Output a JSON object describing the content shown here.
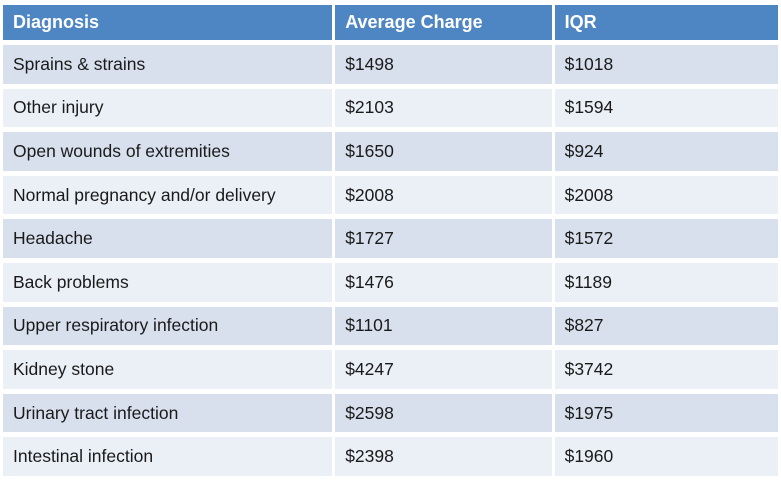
{
  "colors": {
    "header_bg": "#4E86C4",
    "header_text": "#FFFFFF",
    "band_dark": "#D8E0ED",
    "band_light": "#EBEFF6",
    "gridline": "#FFFFFF",
    "body_text": "#1A1A1A"
  },
  "table": {
    "columns": [
      "Diagnosis",
      "Average Charge",
      "IQR"
    ],
    "rows": [
      {
        "diagnosis": "Sprains & strains",
        "average_charge": "$1498",
        "iqr": "$1018"
      },
      {
        "diagnosis": "Other injury",
        "average_charge": "$2103",
        "iqr": "$1594"
      },
      {
        "diagnosis": "Open wounds of extremities",
        "average_charge": "$1650",
        "iqr": "$924"
      },
      {
        "diagnosis": "Normal pregnancy and/or delivery",
        "average_charge": "$2008",
        "iqr": "$2008"
      },
      {
        "diagnosis": "Headache",
        "average_charge": "$1727",
        "iqr": "$1572"
      },
      {
        "diagnosis": "Back problems",
        "average_charge": "$1476",
        "iqr": "$1189"
      },
      {
        "diagnosis": "Upper respiratory infection",
        "average_charge": "$1101",
        "iqr": "$827"
      },
      {
        "diagnosis": "Kidney stone",
        "average_charge": "$4247",
        "iqr": "$3742"
      },
      {
        "diagnosis": "Urinary tract infection",
        "average_charge": "$2598",
        "iqr": "$1975"
      },
      {
        "diagnosis": "Intestinal infection",
        "average_charge": "$2398",
        "iqr": "$1960"
      }
    ]
  },
  "chart_data": {
    "type": "table",
    "title": "",
    "columns": [
      "Diagnosis",
      "Average Charge",
      "IQR"
    ],
    "units": "USD",
    "rows": [
      [
        "Sprains & strains",
        1498,
        1018
      ],
      [
        "Other injury",
        2103,
        1594
      ],
      [
        "Open wounds of extremities",
        1650,
        924
      ],
      [
        "Normal pregnancy and/or delivery",
        2008,
        2008
      ],
      [
        "Headache",
        1727,
        1572
      ],
      [
        "Back problems",
        1476,
        1189
      ],
      [
        "Upper respiratory infection",
        1101,
        827
      ],
      [
        "Kidney stone",
        4247,
        3742
      ],
      [
        "Urinary tract infection",
        2598,
        1975
      ],
      [
        "Intestinal infection",
        2398,
        1960
      ]
    ]
  }
}
